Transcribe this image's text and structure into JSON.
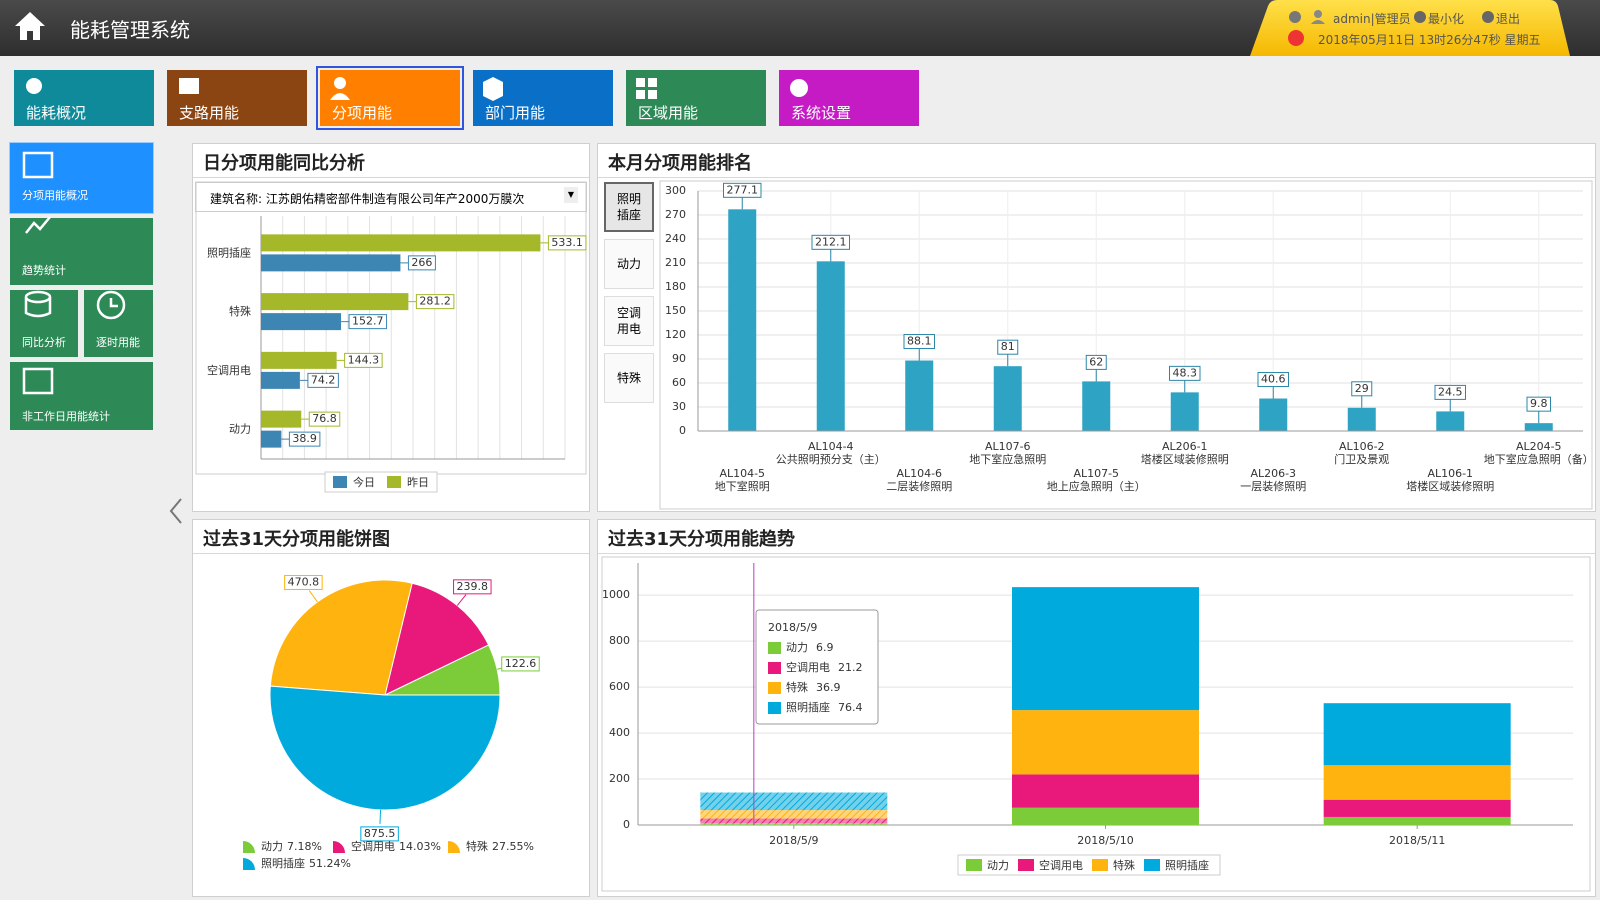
{
  "header": {
    "title": "能耗管理系统",
    "user": "admin|管理员",
    "minimize": "最小化",
    "logout": "退出",
    "datetime": "2018年05月11日 13时26分47秒 星期五"
  },
  "nav": [
    "能耗概况",
    "支路用能",
    "分项用能",
    "部门用能",
    "区域用能",
    "系统设置"
  ],
  "sidebar": [
    "分项用能概况",
    "趋势统计",
    "同比分析",
    "逐时用能",
    "非工作日用能统计"
  ],
  "chart_data": [
    {
      "type": "hbar",
      "title": "日分项用能同比分析",
      "filter_label": "建筑名称:",
      "filter_value": "江苏朗佑精密部件制造有限公司年产2000万膜次",
      "categories": [
        "照明插座",
        "特殊",
        "空调用电",
        "动力"
      ],
      "series": [
        {
          "name": "今日",
          "color": "#3d86b3",
          "values": [
            266,
            152.7,
            74.2,
            38.9
          ]
        },
        {
          "name": "昨日",
          "color": "#a5b82a",
          "values": [
            533.1,
            281.2,
            144.3,
            76.8
          ]
        }
      ],
      "xlim": [
        0,
        580
      ],
      "grid": true
    },
    {
      "type": "bar",
      "title": "本月分项用能排名",
      "tabs": [
        "照明插座",
        "动力",
        "空调用电",
        "特殊"
      ],
      "categories": [
        "AL104-5",
        "AL104-4",
        "AL104-6",
        "AL107-6",
        "AL107-5",
        "AL206-1",
        "AL206-3",
        "AL106-2",
        "AL106-1",
        "AL204-5"
      ],
      "category_names": [
        "地下室照明",
        "公共照明预分支（主）",
        "二层装修照明",
        "地下室应急照明",
        "地上应急照明（主）",
        "塔楼区域装修照明",
        "一层装修照明",
        "门卫及景观",
        "塔楼区域装修照明",
        "地下室应急照明（备）"
      ],
      "values": [
        277.1,
        212.1,
        88.1,
        81,
        62,
        48.3,
        40.6,
        29,
        24.5,
        9.8
      ],
      "color": "#2ea3c3",
      "ylim": [
        0,
        300
      ],
      "yticks": [
        0,
        30,
        60,
        90,
        120,
        150,
        180,
        210,
        240,
        270,
        300
      ],
      "grid": true
    },
    {
      "type": "pie",
      "title": "过去31天分项用能饼图",
      "categories": [
        "动力",
        "空调用电",
        "特殊",
        "照明插座"
      ],
      "values": [
        122.6,
        239.8,
        470.8,
        875.5
      ],
      "percent_labels": [
        "7.18%",
        "14.03%",
        "27.55%",
        "51.24%"
      ],
      "colors": [
        "#7ccc3a",
        "#e8197a",
        "#ffb30f",
        "#00aadc"
      ]
    },
    {
      "type": "stacked_bar",
      "title": "过去31天分项用能趋势",
      "categories": [
        "2018/5/9",
        "2018/5/10",
        "2018/5/11"
      ],
      "series": [
        {
          "name": "动力",
          "color": "#7ccc3a",
          "values": [
            6.9,
            75,
            35
          ]
        },
        {
          "name": "空调用电",
          "color": "#e8197a",
          "values": [
            21.2,
            145,
            75
          ]
        },
        {
          "name": "特殊",
          "color": "#ffb30f",
          "values": [
            36.9,
            280,
            150
          ]
        },
        {
          "name": "照明插座",
          "color": "#00aadc",
          "values": [
            76.4,
            535,
            270
          ]
        }
      ],
      "ylim": [
        0,
        1140
      ],
      "yticks": [
        0,
        200,
        400,
        600,
        800,
        1000
      ],
      "grid": true
    }
  ]
}
